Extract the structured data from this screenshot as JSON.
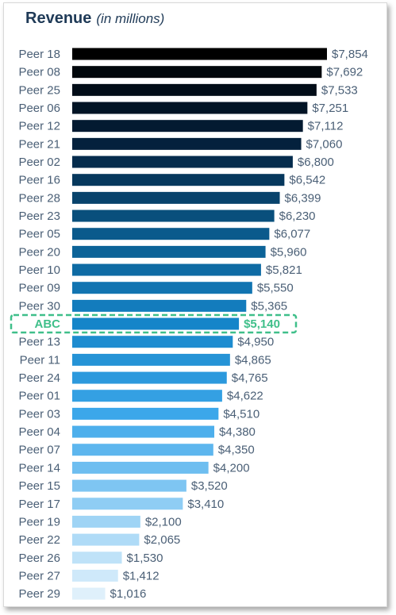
{
  "chart_data": {
    "type": "bar",
    "orientation": "horizontal",
    "title": "Revenue",
    "subtitle": "(in millions)",
    "highlight_category": "ABC",
    "highlight_color": "#3fbf8a",
    "color_gradient": [
      "#000000",
      "#04213d",
      "#0a5a8c",
      "#1585c9",
      "#3ca7ea",
      "#8fcdf4",
      "#dff0fb"
    ],
    "categories": [
      "Peer 18",
      "Peer 08",
      "Peer 25",
      "Peer 06",
      "Peer 12",
      "Peer 21",
      "Peer 02",
      "Peer 16",
      "Peer 28",
      "Peer 23",
      "Peer 05",
      "Peer 20",
      "Peer 10",
      "Peer 09",
      "Peer 30",
      "ABC",
      "Peer 13",
      "Peer 11",
      "Peer 24",
      "Peer 01",
      "Peer 03",
      "Peer 04",
      "Peer 07",
      "Peer 14",
      "Peer 15",
      "Peer 17",
      "Peer 19",
      "Peer 22",
      "Peer 26",
      "Peer 27",
      "Peer 29"
    ],
    "values": [
      7854,
      7692,
      7533,
      7251,
      7112,
      7060,
      6800,
      6542,
      6399,
      6230,
      6077,
      5960,
      5821,
      5550,
      5365,
      5140,
      4950,
      4865,
      4765,
      4622,
      4510,
      4380,
      4350,
      4200,
      3520,
      3410,
      2100,
      2065,
      1530,
      1412,
      1016
    ],
    "value_labels": [
      "$7,854",
      "$7,692",
      "$7,533",
      "$7,251",
      "$7,112",
      "$7,060",
      "$6,800",
      "$6,542",
      "$6,399",
      "$6,230",
      "$6,077",
      "$5,960",
      "$5,821",
      "$5,550",
      "$5,365",
      "$5,140",
      "$4,950",
      "$4,865",
      "$4,765",
      "$4,622",
      "$4,510",
      "$4,380",
      "$4,350",
      "$4,200",
      "$3,520",
      "$3,410",
      "$2,100",
      "$2,065",
      "$1,530",
      "$1,412",
      "$1,016"
    ],
    "xlim": [
      0,
      7854
    ],
    "grid": false,
    "legend": "none"
  }
}
